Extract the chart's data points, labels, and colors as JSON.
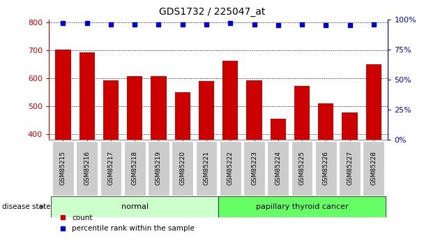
{
  "title": "GDS1732 / 225047_at",
  "samples": [
    "GSM85215",
    "GSM85216",
    "GSM85217",
    "GSM85218",
    "GSM85219",
    "GSM85220",
    "GSM85221",
    "GSM85222",
    "GSM85223",
    "GSM85224",
    "GSM85225",
    "GSM85226",
    "GSM85227",
    "GSM85228"
  ],
  "counts": [
    703,
    693,
    592,
    607,
    607,
    549,
    590,
    663,
    592,
    454,
    572,
    509,
    477,
    650
  ],
  "percentiles": [
    97,
    97,
    96,
    96,
    96,
    96,
    96,
    97,
    96,
    95,
    96,
    95,
    95,
    96
  ],
  "normal_indices": [
    0,
    1,
    2,
    3,
    4,
    5,
    6
  ],
  "cancer_indices": [
    7,
    8,
    9,
    10,
    11,
    12,
    13
  ],
  "ylim_left": [
    380,
    810
  ],
  "ylim_right": [
    0,
    100
  ],
  "yticks_left": [
    400,
    500,
    600,
    700,
    800
  ],
  "yticks_right": [
    0,
    25,
    50,
    75,
    100
  ],
  "bar_color": "#cc0000",
  "dot_color": "#0000cc",
  "normal_bg": "#ccffcc",
  "cancer_bg": "#66ff66",
  "tick_bg": "#cccccc",
  "left_axis_color": "#cc0000",
  "right_axis_color": "#0000cc",
  "legend_count_label": "count",
  "legend_pct_label": "percentile rank within the sample",
  "disease_state_label": "disease state"
}
